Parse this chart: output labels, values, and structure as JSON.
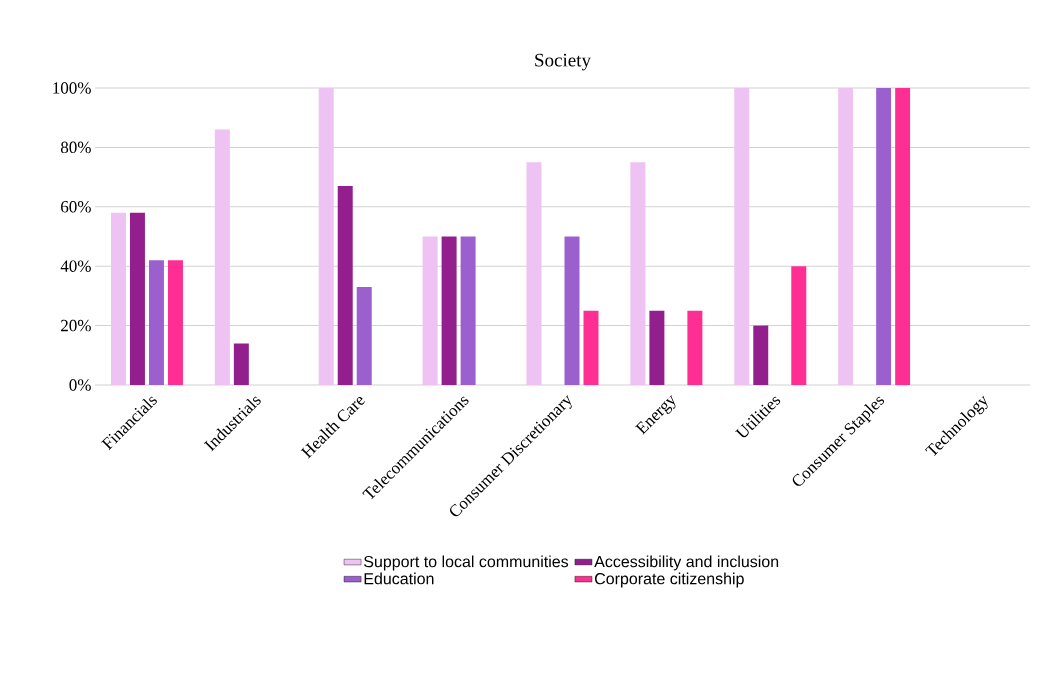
{
  "chart_data": {
    "type": "bar",
    "title": "Society",
    "categories": [
      "Financials",
      "Industrials",
      "Health Care",
      "Telecommunications",
      "Consumer Discretionary",
      "Energy",
      "Utilities",
      "Consumer Staples",
      "Technology"
    ],
    "series": [
      {
        "name": "Support to local communities",
        "color": "#eec2f2",
        "values": [
          58,
          86,
          100,
          50,
          75,
          75,
          100,
          100,
          null
        ]
      },
      {
        "name": "Accessibility and inclusion",
        "color": "#931f8e",
        "values": [
          58,
          14,
          67,
          50,
          null,
          25,
          20,
          null,
          null
        ]
      },
      {
        "name": "Education",
        "color": "#9c5fce",
        "values": [
          42,
          null,
          33,
          50,
          50,
          null,
          null,
          100,
          null
        ]
      },
      {
        "name": "Corporate citizenship",
        "color": "#fe2e93",
        "values": [
          42,
          null,
          null,
          null,
          25,
          25,
          40,
          100,
          null
        ]
      }
    ],
    "ylim": [
      0,
      100
    ],
    "yticks": [
      {
        "value": 0,
        "label": "0%"
      },
      {
        "value": 20,
        "label": "20%"
      },
      {
        "value": 40,
        "label": "40%"
      },
      {
        "value": 60,
        "label": "60%"
      },
      {
        "value": 80,
        "label": "80%"
      },
      {
        "value": 100,
        "label": "100%"
      }
    ],
    "grid": "y",
    "legend": "bottom"
  }
}
